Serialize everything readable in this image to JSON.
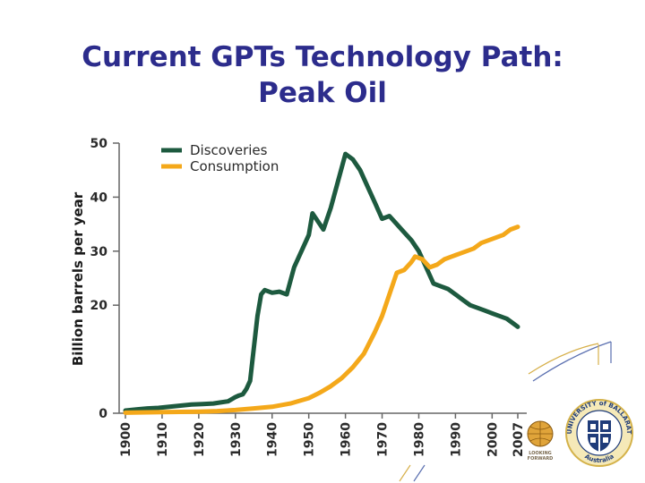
{
  "title": {
    "line1": "Current GPTs Technology Path:",
    "line2": "Peak Oil"
  },
  "colors": {
    "title": "#2c2c8c",
    "discoveries": "#1d5a3f",
    "consumption": "#f4a81a",
    "axis": "#666666"
  },
  "chart_data": {
    "type": "line",
    "title": "",
    "xlabel": "",
    "ylabel": "Billion barrels per year",
    "xlim": [
      1900,
      2007
    ],
    "ylim": [
      0,
      50
    ],
    "xticks": [
      "1900",
      "1910",
      "1920",
      "1930",
      "1940",
      "1950",
      "1960",
      "1970",
      "1980",
      "1990",
      "2000",
      "2007"
    ],
    "yticks": [
      "0",
      "20",
      "30",
      "40",
      "50"
    ],
    "legend_position": "top-left",
    "series": [
      {
        "name": "Discoveries",
        "color": "#1d5a3f",
        "x": [
          1900,
          1903,
          1906,
          1909,
          1912,
          1915,
          1918,
          1921,
          1924,
          1926,
          1928,
          1930,
          1931,
          1932,
          1933,
          1934,
          1935,
          1936,
          1937,
          1938,
          1940,
          1942,
          1944,
          1946,
          1948,
          1950,
          1951,
          1953,
          1954,
          1956,
          1958,
          1960,
          1961,
          1962,
          1964,
          1966,
          1968,
          1970,
          1972,
          1974,
          1976,
          1978,
          1980,
          1982,
          1984,
          1986,
          1988,
          1990,
          1992,
          1994,
          1996,
          1998,
          2000,
          2002,
          2004,
          2006,
          2007
        ],
        "values": [
          0.5,
          0.7,
          0.9,
          1.0,
          1.2,
          1.4,
          1.6,
          1.7,
          1.8,
          2.0,
          2.2,
          3.0,
          3.3,
          3.5,
          4.5,
          6.0,
          12.0,
          18.0,
          22.0,
          22.8,
          22.3,
          22.5,
          22.0,
          27.0,
          30.0,
          33.0,
          37.0,
          35.0,
          34.0,
          38.0,
          43.0,
          48.0,
          47.5,
          47.0,
          45.0,
          42.0,
          39.0,
          36.0,
          36.5,
          35.0,
          33.5,
          32.0,
          30.0,
          27.0,
          24.0,
          23.5,
          23.0,
          22.0,
          21.0,
          20.0,
          19.5,
          19.0,
          18.5,
          18.0,
          17.5,
          16.5,
          16.0
        ]
      },
      {
        "name": "Consumption",
        "color": "#f4a81a",
        "x": [
          1900,
          1910,
          1920,
          1925,
          1930,
          1935,
          1940,
          1945,
          1950,
          1953,
          1956,
          1959,
          1962,
          1965,
          1968,
          1970,
          1972,
          1974,
          1976,
          1978,
          1979,
          1981,
          1983,
          1985,
          1987,
          1989,
          1991,
          1993,
          1995,
          1997,
          1999,
          2001,
          2003,
          2005,
          2007
        ],
        "values": [
          0.1,
          0.2,
          0.3,
          0.4,
          0.6,
          0.9,
          1.2,
          1.8,
          2.8,
          3.8,
          5.0,
          6.5,
          8.5,
          11.0,
          15.0,
          18.0,
          22.0,
          26.0,
          26.5,
          28.0,
          29.0,
          28.5,
          27.0,
          27.5,
          28.5,
          29.0,
          29.5,
          30.0,
          30.5,
          31.5,
          32.0,
          32.5,
          33.0,
          34.0,
          34.5
        ]
      }
    ]
  },
  "logos": {
    "small_caption_1": "LOOKING",
    "small_caption_2": "FORWARD",
    "ring_text_top": "UNIVERSITY of BALLARAT",
    "ring_text_bottom": "Australia"
  }
}
